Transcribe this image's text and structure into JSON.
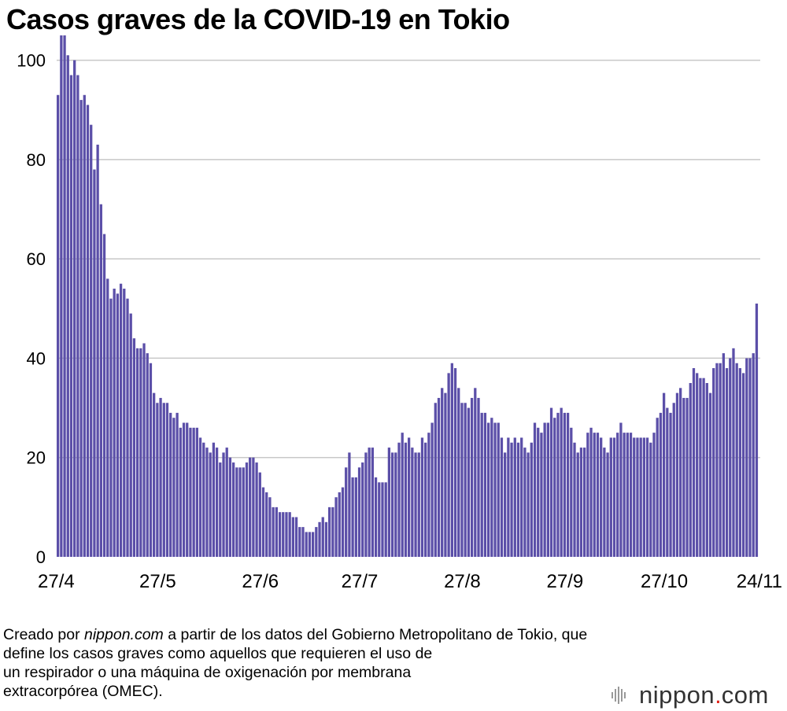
{
  "chart_data": {
    "type": "bar",
    "title": "Casos graves de la COVID-19 en Tokio",
    "xlabel": "",
    "ylabel": "",
    "ylim": [
      0,
      105
    ],
    "yticks": [
      0,
      20,
      40,
      60,
      80,
      100
    ],
    "xtick_labels": [
      "27/4",
      "27/5",
      "27/6",
      "27/7",
      "27/8",
      "27/9",
      "27/10",
      "24/11"
    ],
    "xtick_day_index": [
      0,
      30,
      61,
      91,
      122,
      153,
      183,
      211
    ],
    "start_date": "27/4",
    "end_date": "24/11",
    "series": [
      {
        "name": "Casos graves",
        "color": "#5b4fa8",
        "values": [
          93,
          105,
          105,
          101,
          97,
          100,
          97,
          92,
          93,
          91,
          87,
          78,
          83,
          71,
          65,
          56,
          52,
          54,
          53,
          55,
          54,
          52,
          49,
          44,
          42,
          42,
          43,
          41,
          39,
          33,
          31,
          32,
          31,
          31,
          29,
          28,
          29,
          26,
          27,
          27,
          26,
          26,
          26,
          24,
          23,
          22,
          21,
          23,
          22,
          19,
          21,
          22,
          20,
          19,
          18,
          18,
          18,
          19,
          20,
          20,
          19,
          17,
          14,
          13,
          12,
          10,
          10,
          9,
          9,
          9,
          9,
          8,
          8,
          6,
          6,
          5,
          5,
          5,
          6,
          7,
          8,
          7,
          10,
          10,
          12,
          13,
          14,
          18,
          21,
          16,
          16,
          18,
          19,
          21,
          22,
          22,
          16,
          15,
          15,
          15,
          22,
          21,
          21,
          23,
          25,
          23,
          24,
          22,
          21,
          21,
          24,
          23,
          25,
          27,
          31,
          32,
          34,
          33,
          37,
          39,
          38,
          34,
          31,
          31,
          30,
          32,
          34,
          32,
          29,
          29,
          27,
          28,
          27,
          27,
          24,
          21,
          24,
          23,
          24,
          23,
          24,
          22,
          21,
          23,
          27,
          26,
          25,
          27,
          27,
          30,
          28,
          29,
          30,
          29,
          29,
          26,
          23,
          21,
          22,
          22,
          25,
          26,
          25,
          25,
          24,
          22,
          21,
          24,
          24,
          25,
          27,
          25,
          25,
          25,
          24,
          24,
          24,
          24,
          24,
          23,
          25,
          28,
          29,
          33,
          30,
          29,
          31,
          33,
          34,
          32,
          32,
          35,
          38,
          37,
          36,
          36,
          35,
          33,
          38,
          39,
          39,
          41,
          38,
          40,
          42,
          39,
          38,
          37,
          40,
          40,
          41,
          51
        ]
      }
    ]
  },
  "caption": {
    "prefix": "Creado por ",
    "source": "nippon.com",
    "line1_rest": " a partir de los datos del Gobierno Metropolitano de Tokio, que",
    "line2": "define los casos graves como aquellos que requieren el uso de",
    "line3": "un respirador o una máquina de oxigenación por membrana",
    "line4": "extracorpórea (OMEC)."
  },
  "logo": {
    "word": "nippon",
    "dot": ".",
    "tld": "com",
    "icon": "nippon-sound-wave-icon",
    "accent_color": "#e2231a"
  }
}
